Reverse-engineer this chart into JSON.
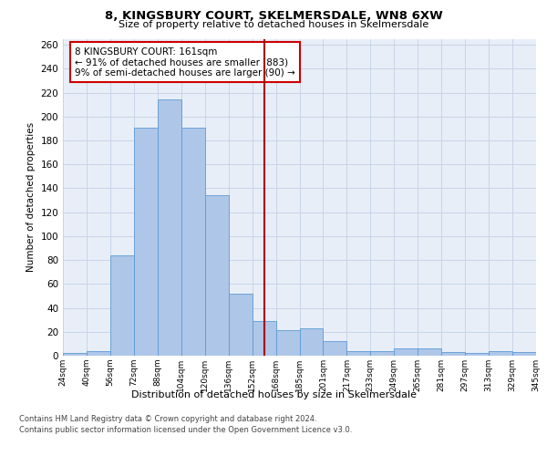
{
  "title1": "8, KINGSBURY COURT, SKELMERSDALE, WN8 6XW",
  "title2": "Size of property relative to detached houses in Skelmersdale",
  "xlabel": "Distribution of detached houses by size in Skelmersdale",
  "ylabel": "Number of detached properties",
  "categories": [
    "24sqm",
    "40sqm",
    "56sqm",
    "72sqm",
    "88sqm",
    "104sqm",
    "120sqm",
    "136sqm",
    "152sqm",
    "168sqm",
    "185sqm",
    "201sqm",
    "217sqm",
    "233sqm",
    "249sqm",
    "265sqm",
    "281sqm",
    "297sqm",
    "313sqm",
    "329sqm",
    "345sqm"
  ],
  "values": [
    2,
    4,
    84,
    191,
    214,
    191,
    134,
    52,
    29,
    21,
    23,
    12,
    4,
    4,
    6,
    6,
    3,
    2,
    4,
    3
  ],
  "bar_color": "#aec6e8",
  "bar_edge_color": "#5b9bd5",
  "vline_color": "#aa0000",
  "grid_color": "#c8d4e8",
  "background_color": "#e8eef8",
  "annotation_text": "8 KINGSBURY COURT: 161sqm\n← 91% of detached houses are smaller (883)\n9% of semi-detached houses are larger (90) →",
  "annotation_box_color": "#ffffff",
  "annotation_box_edge_color": "#cc0000",
  "footnote1": "Contains HM Land Registry data © Crown copyright and database right 2024.",
  "footnote2": "Contains public sector information licensed under the Open Government Licence v3.0.",
  "ylim": [
    0,
    265
  ],
  "yticks": [
    0,
    20,
    40,
    60,
    80,
    100,
    120,
    140,
    160,
    180,
    200,
    220,
    240,
    260
  ],
  "vline_pos": 8.5
}
